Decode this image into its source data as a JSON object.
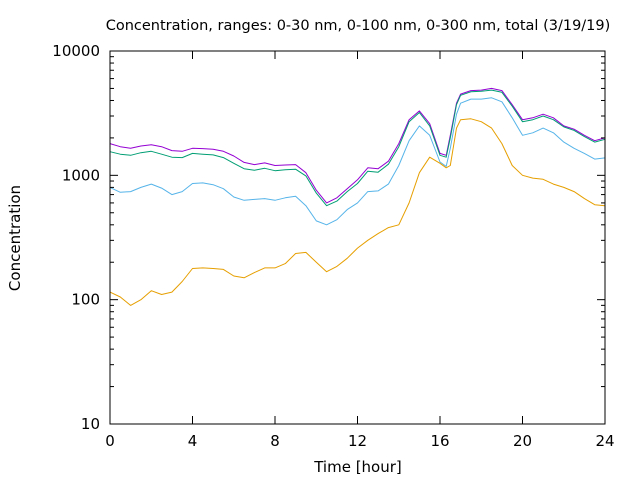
{
  "chart_data": {
    "type": "line",
    "title": "Concentration, ranges: 0-30 nm, 0-100 nm, 0-300 nm, total (3/19/19)",
    "xlabel": "Time [hour]",
    "ylabel": "Concentration",
    "xlim": [
      0,
      24
    ],
    "ylim": [
      10,
      10000
    ],
    "y_scale": "log",
    "grid": false,
    "legend": "none",
    "x_ticks": [
      0,
      4,
      8,
      12,
      16,
      20,
      24
    ],
    "x_tick_labels": [
      "0",
      "4",
      "8",
      "12",
      "16",
      "20",
      "24"
    ],
    "y_ticks": [
      10,
      100,
      1000,
      10000
    ],
    "y_tick_labels": [
      "10",
      "100",
      "1000",
      "10000"
    ],
    "series": [
      {
        "color": "#9400d3",
        "x": [
          0,
          0.5,
          1,
          1.5,
          2,
          2.5,
          3,
          3.5,
          4,
          4.5,
          5,
          5.5,
          6,
          6.5,
          7,
          7.5,
          8,
          8.5,
          9,
          9.5,
          10,
          10.5,
          11,
          11.5,
          12,
          12.5,
          13,
          13.5,
          14,
          14.5,
          15,
          15.5,
          16,
          16.3,
          16.5,
          16.8,
          17,
          17.5,
          18,
          18.5,
          19,
          19.5,
          20,
          20.5,
          21,
          21.5,
          22,
          22.5,
          23,
          23.5,
          24
        ],
        "y": [
          1800,
          1700,
          1650,
          1720,
          1760,
          1700,
          1580,
          1560,
          1650,
          1640,
          1620,
          1560,
          1430,
          1270,
          1220,
          1260,
          1200,
          1210,
          1220,
          1050,
          760,
          600,
          660,
          780,
          920,
          1150,
          1130,
          1300,
          1800,
          2800,
          3300,
          2600,
          1500,
          1450,
          2100,
          3800,
          4500,
          4800,
          4850,
          5000,
          4800,
          3700,
          2800,
          2900,
          3100,
          2900,
          2500,
          2350,
          2100,
          1900,
          2000
        ]
      },
      {
        "color": "#009e73",
        "x": [
          0,
          0.5,
          1,
          1.5,
          2,
          2.5,
          3,
          3.5,
          4,
          4.5,
          5,
          5.5,
          6,
          6.5,
          7,
          7.5,
          8,
          8.5,
          9,
          9.5,
          10,
          10.5,
          11,
          11.5,
          12,
          12.5,
          13,
          13.5,
          14,
          14.5,
          15,
          15.5,
          16,
          16.3,
          16.5,
          16.8,
          17,
          17.5,
          18,
          18.5,
          19,
          19.5,
          20,
          20.5,
          21,
          21.5,
          22,
          22.5,
          23,
          23.5,
          24
        ],
        "y": [
          1550,
          1480,
          1450,
          1520,
          1560,
          1480,
          1400,
          1390,
          1500,
          1480,
          1460,
          1390,
          1250,
          1130,
          1100,
          1140,
          1090,
          1110,
          1120,
          990,
          720,
          570,
          620,
          740,
          860,
          1080,
          1060,
          1230,
          1700,
          2700,
          3200,
          2500,
          1450,
          1400,
          2000,
          3700,
          4400,
          4700,
          4750,
          4850,
          4650,
          3600,
          2700,
          2800,
          3000,
          2800,
          2450,
          2300,
          2050,
          1850,
          1950
        ]
      },
      {
        "color": "#56b4e9",
        "x": [
          0,
          0.5,
          1,
          1.5,
          2,
          2.5,
          3,
          3.5,
          4,
          4.5,
          5,
          5.5,
          6,
          6.5,
          7,
          7.5,
          8,
          8.5,
          9,
          9.5,
          10,
          10.5,
          11,
          11.5,
          12,
          12.5,
          13,
          13.5,
          14,
          14.5,
          15,
          15.5,
          16,
          16.3,
          16.5,
          16.8,
          17,
          17.5,
          18,
          18.5,
          19,
          19.5,
          20,
          20.5,
          21,
          21.5,
          22,
          22.5,
          23,
          23.5,
          24
        ],
        "y": [
          800,
          730,
          740,
          800,
          850,
          790,
          700,
          740,
          860,
          870,
          840,
          780,
          670,
          630,
          640,
          650,
          630,
          660,
          680,
          570,
          430,
          400,
          440,
          530,
          600,
          740,
          750,
          850,
          1200,
          1900,
          2500,
          2100,
          1280,
          1180,
          1650,
          3100,
          3800,
          4100,
          4100,
          4200,
          3900,
          2900,
          2100,
          2200,
          2400,
          2200,
          1850,
          1650,
          1500,
          1350,
          1380
        ]
      },
      {
        "color": "#e69f00",
        "x": [
          0,
          0.5,
          1,
          1.5,
          2,
          2.5,
          3,
          3.5,
          4,
          4.5,
          5,
          5.5,
          6,
          6.5,
          7,
          7.5,
          8,
          8.5,
          9,
          9.5,
          10,
          10.5,
          11,
          11.5,
          12,
          12.5,
          13,
          13.5,
          14,
          14.5,
          15,
          15.5,
          16,
          16.3,
          16.5,
          16.8,
          17,
          17.5,
          18,
          18.5,
          19,
          19.5,
          20,
          20.5,
          21,
          21.5,
          22,
          22.5,
          23,
          23.5,
          24
        ],
        "y": [
          115,
          105,
          90,
          100,
          118,
          110,
          115,
          140,
          178,
          180,
          178,
          175,
          155,
          150,
          165,
          180,
          180,
          195,
          235,
          240,
          200,
          168,
          185,
          215,
          260,
          300,
          340,
          380,
          400,
          600,
          1050,
          1400,
          1250,
          1150,
          1200,
          2400,
          2800,
          2850,
          2700,
          2400,
          1800,
          1200,
          1000,
          950,
          930,
          850,
          800,
          740,
          650,
          580,
          570
        ]
      }
    ]
  }
}
